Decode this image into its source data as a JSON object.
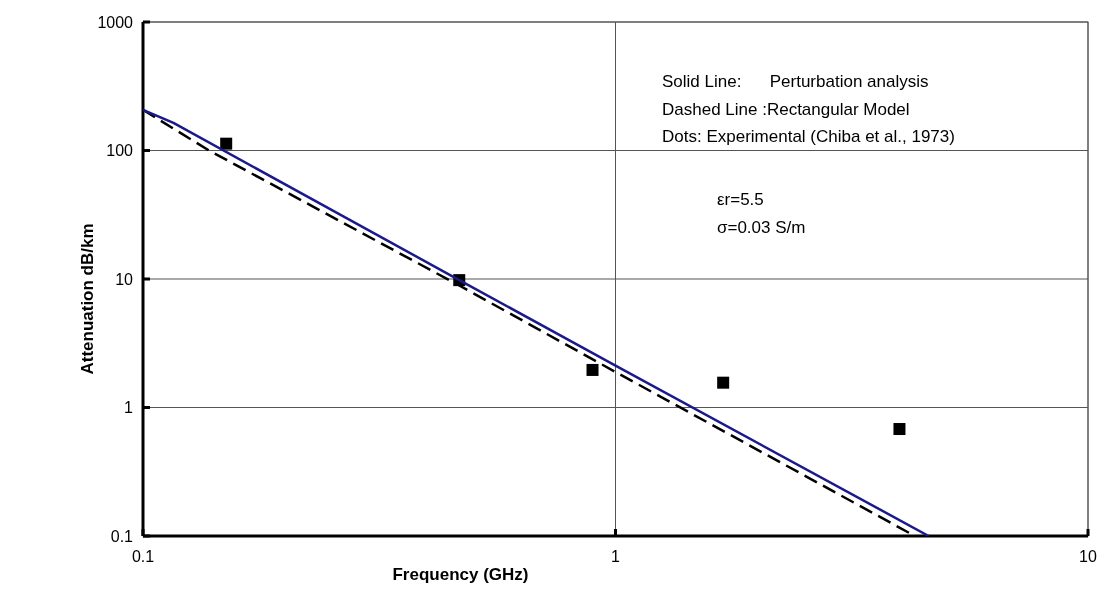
{
  "chart_data": {
    "type": "line",
    "xlabel": "Frequency (GHz)",
    "ylabel": "Attenuation dB/km",
    "log": "xy",
    "grid": true,
    "xlim": [
      0.1,
      10
    ],
    "xticks": [
      0.1,
      1,
      10
    ],
    "ylim": [
      0.1,
      1000
    ],
    "yticks": [
      0.1,
      1,
      10,
      100,
      1000
    ],
    "annotations": [
      "Solid Line:      Perturbation analysis",
      "Dashed Line :Rectangular Model",
      "Dots: Experimental (Chiba et al., 1973)",
      "εr=5.5",
      "σ=0.03 S/m"
    ],
    "series": [
      {
        "color": "#1a1a8c",
        "line_style": "solid",
        "marker": "none",
        "x": [
          0.1,
          0.116,
          0.467,
          1,
          4.6
        ],
        "values": [
          207,
          164,
          9.8,
          2.12,
          0.1
        ]
      },
      {
        "color": "#000000",
        "line_style": "dashed",
        "marker": "none",
        "x": [
          0.1,
          0.138,
          0.467,
          1,
          4.3
        ],
        "values": [
          207,
          100,
          8.9,
          1.89,
          0.1
        ]
      },
      {
        "type": "scatter",
        "color": "#000000",
        "marker": "square",
        "x": [
          0.15,
          0.467,
          0.894,
          1.69,
          3.99
        ],
        "values": [
          113,
          9.8,
          1.96,
          1.56,
          0.68
        ]
      }
    ]
  }
}
